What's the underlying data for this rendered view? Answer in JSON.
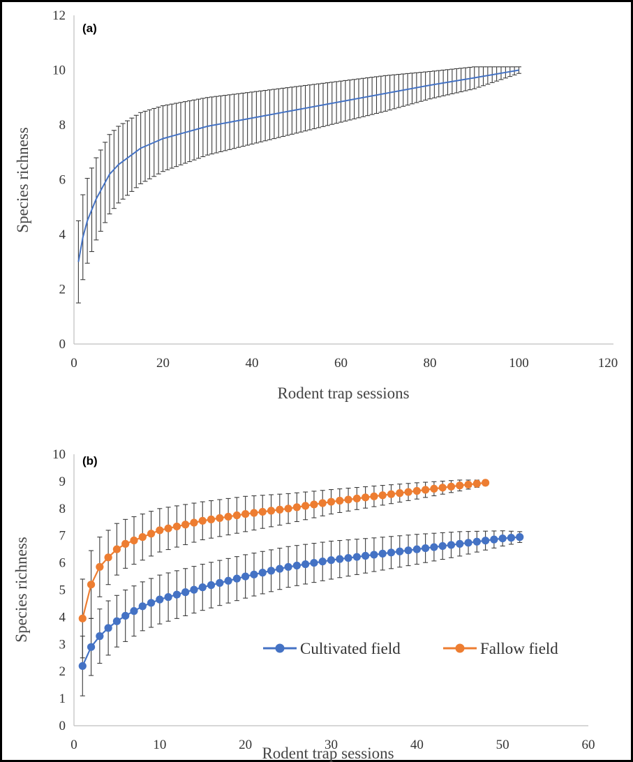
{
  "chart_data": [
    {
      "type": "line",
      "panel_label": "(a)",
      "xlabel": "Rodent trap sessions",
      "ylabel": "Species richness",
      "xlim": [
        0,
        120
      ],
      "ylim": [
        0,
        12
      ],
      "x_ticks": [
        0,
        20,
        40,
        60,
        80,
        100,
        120
      ],
      "y_ticks": [
        0,
        2,
        4,
        6,
        8,
        10,
        12
      ],
      "grid": false,
      "legend": "none",
      "series": [
        {
          "color": "#4472c4",
          "x": [
            1,
            2,
            3,
            5,
            8,
            10,
            15,
            20,
            30,
            40,
            50,
            60,
            70,
            80,
            90,
            100
          ],
          "y": [
            3.0,
            3.9,
            4.5,
            5.3,
            6.2,
            6.55,
            7.15,
            7.5,
            7.95,
            8.25,
            8.55,
            8.85,
            9.15,
            9.45,
            9.72,
            10.0
          ],
          "error": [
            1.5,
            1.55,
            1.55,
            1.5,
            1.45,
            1.4,
            1.3,
            1.2,
            1.05,
            0.95,
            0.85,
            0.75,
            0.65,
            0.5,
            0.4,
            0.12
          ]
        }
      ]
    },
    {
      "type": "line",
      "panel_label": "(b)",
      "xlabel": "Rodent trap sessions",
      "ylabel": "Species richness",
      "xlim": [
        0,
        60
      ],
      "ylim": [
        0,
        10
      ],
      "x_ticks": [
        0,
        10,
        20,
        30,
        40,
        50,
        60
      ],
      "y_ticks": [
        0,
        1,
        2,
        3,
        4,
        5,
        6,
        7,
        8,
        9,
        10
      ],
      "grid": false,
      "legend": "bottom-right",
      "series": [
        {
          "name": "Cultivated field",
          "color": "#4472c4",
          "x": [
            1,
            2,
            3,
            4,
            5,
            6,
            8,
            10,
            15,
            20,
            25,
            30,
            35,
            40,
            45,
            50,
            52
          ],
          "y": [
            2.2,
            2.9,
            3.3,
            3.6,
            3.85,
            4.05,
            4.4,
            4.65,
            5.1,
            5.5,
            5.85,
            6.1,
            6.3,
            6.5,
            6.7,
            6.9,
            6.95
          ],
          "error": [
            1.1,
            1.05,
            1.0,
            1.0,
            0.95,
            0.95,
            0.9,
            0.9,
            0.85,
            0.8,
            0.75,
            0.7,
            0.62,
            0.55,
            0.45,
            0.28,
            0.2
          ]
        },
        {
          "name": "Fallow field",
          "color": "#ed7d31",
          "x": [
            1,
            2,
            3,
            4,
            5,
            6,
            8,
            10,
            15,
            20,
            25,
            30,
            35,
            40,
            45,
            48
          ],
          "y": [
            3.95,
            5.2,
            5.85,
            6.2,
            6.5,
            6.7,
            6.95,
            7.2,
            7.55,
            7.8,
            8.0,
            8.25,
            8.45,
            8.65,
            8.85,
            8.95
          ],
          "error": [
            1.45,
            1.25,
            1.1,
            1.0,
            0.95,
            0.9,
            0.85,
            0.8,
            0.7,
            0.65,
            0.55,
            0.45,
            0.38,
            0.3,
            0.2,
            0.1
          ]
        }
      ]
    }
  ]
}
